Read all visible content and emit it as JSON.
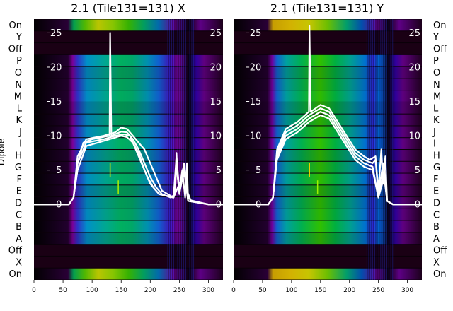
{
  "chart_data": [
    {
      "type": "heatmap",
      "title": "2.1 (Tile131=131) X",
      "xlabel": "",
      "ylabel": "Dipole",
      "x_ticks": [
        0,
        50,
        100,
        150,
        200,
        250,
        300
      ],
      "xlim": [
        0,
        325
      ],
      "y_ticks": [
        0,
        5,
        10,
        15,
        20,
        25
      ],
      "ylim": [
        -11,
        27
      ],
      "dipole_labels": [
        "On",
        "X",
        "Off",
        "A",
        "B",
        "C",
        "D",
        "E",
        "F",
        "G",
        "H",
        "I",
        "J",
        "K",
        "L",
        "M",
        "N",
        "O",
        "P",
        "Off",
        "Y",
        "On"
      ],
      "colormap": "nipy_spectral",
      "band_on_fraction": [
        0.08,
        0.88
      ],
      "series": [
        {
          "values": [
            [
              0,
              0
            ],
            [
              60,
              0
            ],
            [
              68,
              1
            ],
            [
              75,
              6
            ],
            [
              85,
              9
            ],
            [
              100,
              9.5
            ],
            [
              130,
              10
            ],
            [
              131,
              25
            ],
            [
              133,
              10
            ],
            [
              150,
              10.6
            ],
            [
              160,
              10.5
            ],
            [
              170,
              9.5
            ],
            [
              180,
              8
            ],
            [
              190,
              6
            ],
            [
              200,
              4
            ],
            [
              210,
              2.5
            ],
            [
              220,
              1.5
            ],
            [
              235,
              1
            ],
            [
              243,
              1.5
            ],
            [
              245,
              7.5
            ],
            [
              247,
              4
            ],
            [
              250,
              2
            ],
            [
              255,
              5
            ],
            [
              260,
              1
            ],
            [
              263,
              6
            ],
            [
              265,
              1
            ],
            [
              270,
              0.6
            ],
            [
              300,
              0
            ],
            [
              325,
              0
            ]
          ]
        },
        {
          "values": [
            [
              0,
              0
            ],
            [
              60,
              0
            ],
            [
              68,
              1
            ],
            [
              75,
              7
            ],
            [
              90,
              9.5
            ],
            [
              120,
              10
            ],
            [
              140,
              10.5
            ],
            [
              150,
              11.2
            ],
            [
              160,
              11
            ],
            [
              170,
              10
            ],
            [
              180,
              9
            ],
            [
              190,
              8
            ],
            [
              200,
              6
            ],
            [
              210,
              4
            ],
            [
              220,
              2
            ],
            [
              240,
              1
            ],
            [
              245,
              7
            ],
            [
              250,
              2
            ],
            [
              258,
              6
            ],
            [
              263,
              2
            ],
            [
              270,
              0.5
            ],
            [
              300,
              0
            ],
            [
              325,
              0
            ]
          ]
        },
        {
          "values": [
            [
              0,
              0
            ],
            [
              60,
              0
            ],
            [
              68,
              1
            ],
            [
              75,
              6
            ],
            [
              90,
              9
            ],
            [
              120,
              9.5
            ],
            [
              140,
              10
            ],
            [
              155,
              10.2
            ],
            [
              165,
              10
            ],
            [
              175,
              8
            ],
            [
              185,
              6
            ],
            [
              195,
              4
            ],
            [
              205,
              2.5
            ],
            [
              215,
              1.5
            ],
            [
              240,
              1
            ],
            [
              245,
              6
            ],
            [
              250,
              1.5
            ],
            [
              258,
              5
            ],
            [
              265,
              0.5
            ],
            [
              300,
              0
            ],
            [
              325,
              0
            ]
          ]
        },
        {
          "values": [
            [
              0,
              0
            ],
            [
              60,
              0
            ],
            [
              68,
              1
            ],
            [
              75,
              5
            ],
            [
              90,
              8.5
            ],
            [
              110,
              9
            ],
            [
              130,
              9.5
            ],
            [
              150,
              10
            ],
            [
              160,
              9.8
            ],
            [
              170,
              9
            ],
            [
              180,
              7.5
            ],
            [
              190,
              5
            ],
            [
              200,
              3
            ],
            [
              215,
              1.5
            ],
            [
              240,
              1
            ],
            [
              250,
              3
            ],
            [
              260,
              4.5
            ],
            [
              265,
              0.5
            ],
            [
              300,
              0
            ],
            [
              325,
              0
            ]
          ]
        }
      ],
      "spike_markers": [
        [
          131,
          5,
          "#e8f000"
        ],
        [
          145,
          2.5,
          "#b0f000"
        ]
      ]
    },
    {
      "type": "heatmap",
      "title": "2.1 (Tile131=131) Y",
      "xlabel": "",
      "ylabel": "Dipole",
      "x_ticks": [
        0,
        50,
        100,
        150,
        200,
        250,
        300
      ],
      "xlim": [
        0,
        325
      ],
      "y_ticks": [
        0,
        5,
        10,
        15,
        20,
        25
      ],
      "ylim": [
        -11,
        27
      ],
      "dipole_labels": [
        "On",
        "X",
        "Off",
        "A",
        "B",
        "C",
        "D",
        "E",
        "F",
        "G",
        "H",
        "I",
        "J",
        "K",
        "L",
        "M",
        "N",
        "O",
        "P",
        "Off",
        "Y",
        "On"
      ],
      "colormap": "nipy_spectral",
      "band_on_fraction": [
        0.08,
        0.88
      ],
      "series": [
        {
          "values": [
            [
              0,
              0
            ],
            [
              60,
              0
            ],
            [
              68,
              1
            ],
            [
              75,
              8
            ],
            [
              90,
              11
            ],
            [
              110,
              12
            ],
            [
              130,
              13.5
            ],
            [
              131,
              26
            ],
            [
              133,
              13.5
            ],
            [
              150,
              14.5
            ],
            [
              165,
              14
            ],
            [
              180,
              12
            ],
            [
              195,
              10
            ],
            [
              210,
              8
            ],
            [
              225,
              7
            ],
            [
              235,
              6.5
            ],
            [
              245,
              7
            ],
            [
              250,
              2
            ],
            [
              255,
              8
            ],
            [
              258,
              3
            ],
            [
              262,
              7
            ],
            [
              265,
              0.5
            ],
            [
              275,
              0
            ],
            [
              325,
              0
            ]
          ]
        },
        {
          "values": [
            [
              0,
              0
            ],
            [
              60,
              0
            ],
            [
              68,
              1
            ],
            [
              75,
              7.5
            ],
            [
              90,
              10.5
            ],
            [
              110,
              11.5
            ],
            [
              130,
              13
            ],
            [
              150,
              14
            ],
            [
              165,
              13.5
            ],
            [
              180,
              11.5
            ],
            [
              195,
              9.5
            ],
            [
              210,
              7.5
            ],
            [
              225,
              6.5
            ],
            [
              240,
              6
            ],
            [
              245,
              6.5
            ],
            [
              250,
              1.5
            ],
            [
              258,
              6
            ],
            [
              265,
              0.5
            ],
            [
              275,
              0
            ],
            [
              325,
              0
            ]
          ]
        },
        {
          "values": [
            [
              0,
              0
            ],
            [
              60,
              0
            ],
            [
              68,
              1
            ],
            [
              75,
              7
            ],
            [
              90,
              10
            ],
            [
              110,
              11
            ],
            [
              130,
              12.5
            ],
            [
              150,
              13.5
            ],
            [
              165,
              13
            ],
            [
              180,
              11
            ],
            [
              195,
              9
            ],
            [
              210,
              7
            ],
            [
              225,
              6
            ],
            [
              240,
              5.5
            ],
            [
              250,
              1
            ],
            [
              260,
              5
            ],
            [
              265,
              0.5
            ],
            [
              275,
              0
            ],
            [
              325,
              0
            ]
          ]
        },
        {
          "values": [
            [
              0,
              0
            ],
            [
              60,
              0
            ],
            [
              68,
              1
            ],
            [
              75,
              6.5
            ],
            [
              90,
              9.5
            ],
            [
              110,
              10.5
            ],
            [
              130,
              12
            ],
            [
              150,
              13
            ],
            [
              165,
              12.5
            ],
            [
              180,
              10.5
            ],
            [
              195,
              8.5
            ],
            [
              210,
              6.5
            ],
            [
              225,
              5.5
            ],
            [
              240,
              5
            ],
            [
              250,
              1
            ],
            [
              260,
              4
            ],
            [
              265,
              0.5
            ],
            [
              275,
              0
            ],
            [
              325,
              0
            ]
          ]
        }
      ],
      "spike_markers": [
        [
          131,
          5,
          "#f0d000"
        ],
        [
          145,
          2.5,
          "#a0f000"
        ]
      ]
    }
  ]
}
